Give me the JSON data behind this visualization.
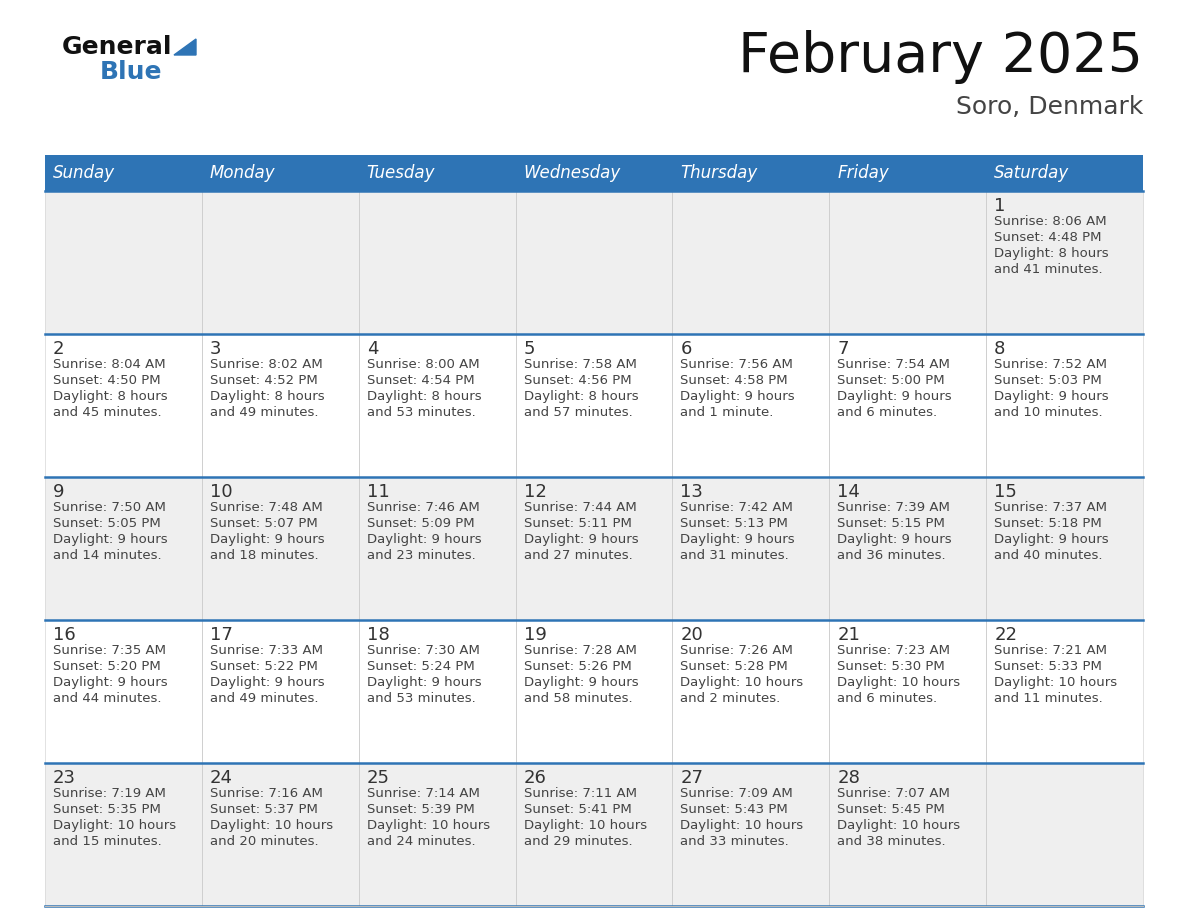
{
  "title": "February 2025",
  "subtitle": "Soro, Denmark",
  "header_bg": "#2E74B5",
  "header_text_color": "#FFFFFF",
  "day_names": [
    "Sunday",
    "Monday",
    "Tuesday",
    "Wednesday",
    "Thursday",
    "Friday",
    "Saturday"
  ],
  "cell_bg_even": "#EFEFEF",
  "cell_bg_odd": "#FFFFFF",
  "cell_border_color": "#2E74B5",
  "day_number_color": "#333333",
  "info_text_color": "#444444",
  "logo_general_color": "#111111",
  "logo_blue_color": "#2E74B5",
  "logo_triangle_color": "#2E74B5",
  "calendar": [
    [
      null,
      null,
      null,
      null,
      null,
      null,
      {
        "day": 1,
        "sunrise": "8:06 AM",
        "sunset": "4:48 PM",
        "daylight": "8 hours and 41 minutes."
      }
    ],
    [
      {
        "day": 2,
        "sunrise": "8:04 AM",
        "sunset": "4:50 PM",
        "daylight": "8 hours and 45 minutes."
      },
      {
        "day": 3,
        "sunrise": "8:02 AM",
        "sunset": "4:52 PM",
        "daylight": "8 hours and 49 minutes."
      },
      {
        "day": 4,
        "sunrise": "8:00 AM",
        "sunset": "4:54 PM",
        "daylight": "8 hours and 53 minutes."
      },
      {
        "day": 5,
        "sunrise": "7:58 AM",
        "sunset": "4:56 PM",
        "daylight": "8 hours and 57 minutes."
      },
      {
        "day": 6,
        "sunrise": "7:56 AM",
        "sunset": "4:58 PM",
        "daylight": "9 hours and 1 minute."
      },
      {
        "day": 7,
        "sunrise": "7:54 AM",
        "sunset": "5:00 PM",
        "daylight": "9 hours and 6 minutes."
      },
      {
        "day": 8,
        "sunrise": "7:52 AM",
        "sunset": "5:03 PM",
        "daylight": "9 hours and 10 minutes."
      }
    ],
    [
      {
        "day": 9,
        "sunrise": "7:50 AM",
        "sunset": "5:05 PM",
        "daylight": "9 hours and 14 minutes."
      },
      {
        "day": 10,
        "sunrise": "7:48 AM",
        "sunset": "5:07 PM",
        "daylight": "9 hours and 18 minutes."
      },
      {
        "day": 11,
        "sunrise": "7:46 AM",
        "sunset": "5:09 PM",
        "daylight": "9 hours and 23 minutes."
      },
      {
        "day": 12,
        "sunrise": "7:44 AM",
        "sunset": "5:11 PM",
        "daylight": "9 hours and 27 minutes."
      },
      {
        "day": 13,
        "sunrise": "7:42 AM",
        "sunset": "5:13 PM",
        "daylight": "9 hours and 31 minutes."
      },
      {
        "day": 14,
        "sunrise": "7:39 AM",
        "sunset": "5:15 PM",
        "daylight": "9 hours and 36 minutes."
      },
      {
        "day": 15,
        "sunrise": "7:37 AM",
        "sunset": "5:18 PM",
        "daylight": "9 hours and 40 minutes."
      }
    ],
    [
      {
        "day": 16,
        "sunrise": "7:35 AM",
        "sunset": "5:20 PM",
        "daylight": "9 hours and 44 minutes."
      },
      {
        "day": 17,
        "sunrise": "7:33 AM",
        "sunset": "5:22 PM",
        "daylight": "9 hours and 49 minutes."
      },
      {
        "day": 18,
        "sunrise": "7:30 AM",
        "sunset": "5:24 PM",
        "daylight": "9 hours and 53 minutes."
      },
      {
        "day": 19,
        "sunrise": "7:28 AM",
        "sunset": "5:26 PM",
        "daylight": "9 hours and 58 minutes."
      },
      {
        "day": 20,
        "sunrise": "7:26 AM",
        "sunset": "5:28 PM",
        "daylight": "10 hours and 2 minutes."
      },
      {
        "day": 21,
        "sunrise": "7:23 AM",
        "sunset": "5:30 PM",
        "daylight": "10 hours and 6 minutes."
      },
      {
        "day": 22,
        "sunrise": "7:21 AM",
        "sunset": "5:33 PM",
        "daylight": "10 hours and 11 minutes."
      }
    ],
    [
      {
        "day": 23,
        "sunrise": "7:19 AM",
        "sunset": "5:35 PM",
        "daylight": "10 hours and 15 minutes."
      },
      {
        "day": 24,
        "sunrise": "7:16 AM",
        "sunset": "5:37 PM",
        "daylight": "10 hours and 20 minutes."
      },
      {
        "day": 25,
        "sunrise": "7:14 AM",
        "sunset": "5:39 PM",
        "daylight": "10 hours and 24 minutes."
      },
      {
        "day": 26,
        "sunrise": "7:11 AM",
        "sunset": "5:41 PM",
        "daylight": "10 hours and 29 minutes."
      },
      {
        "day": 27,
        "sunrise": "7:09 AM",
        "sunset": "5:43 PM",
        "daylight": "10 hours and 33 minutes."
      },
      {
        "day": 28,
        "sunrise": "7:07 AM",
        "sunset": "5:45 PM",
        "daylight": "10 hours and 38 minutes."
      },
      null
    ]
  ]
}
